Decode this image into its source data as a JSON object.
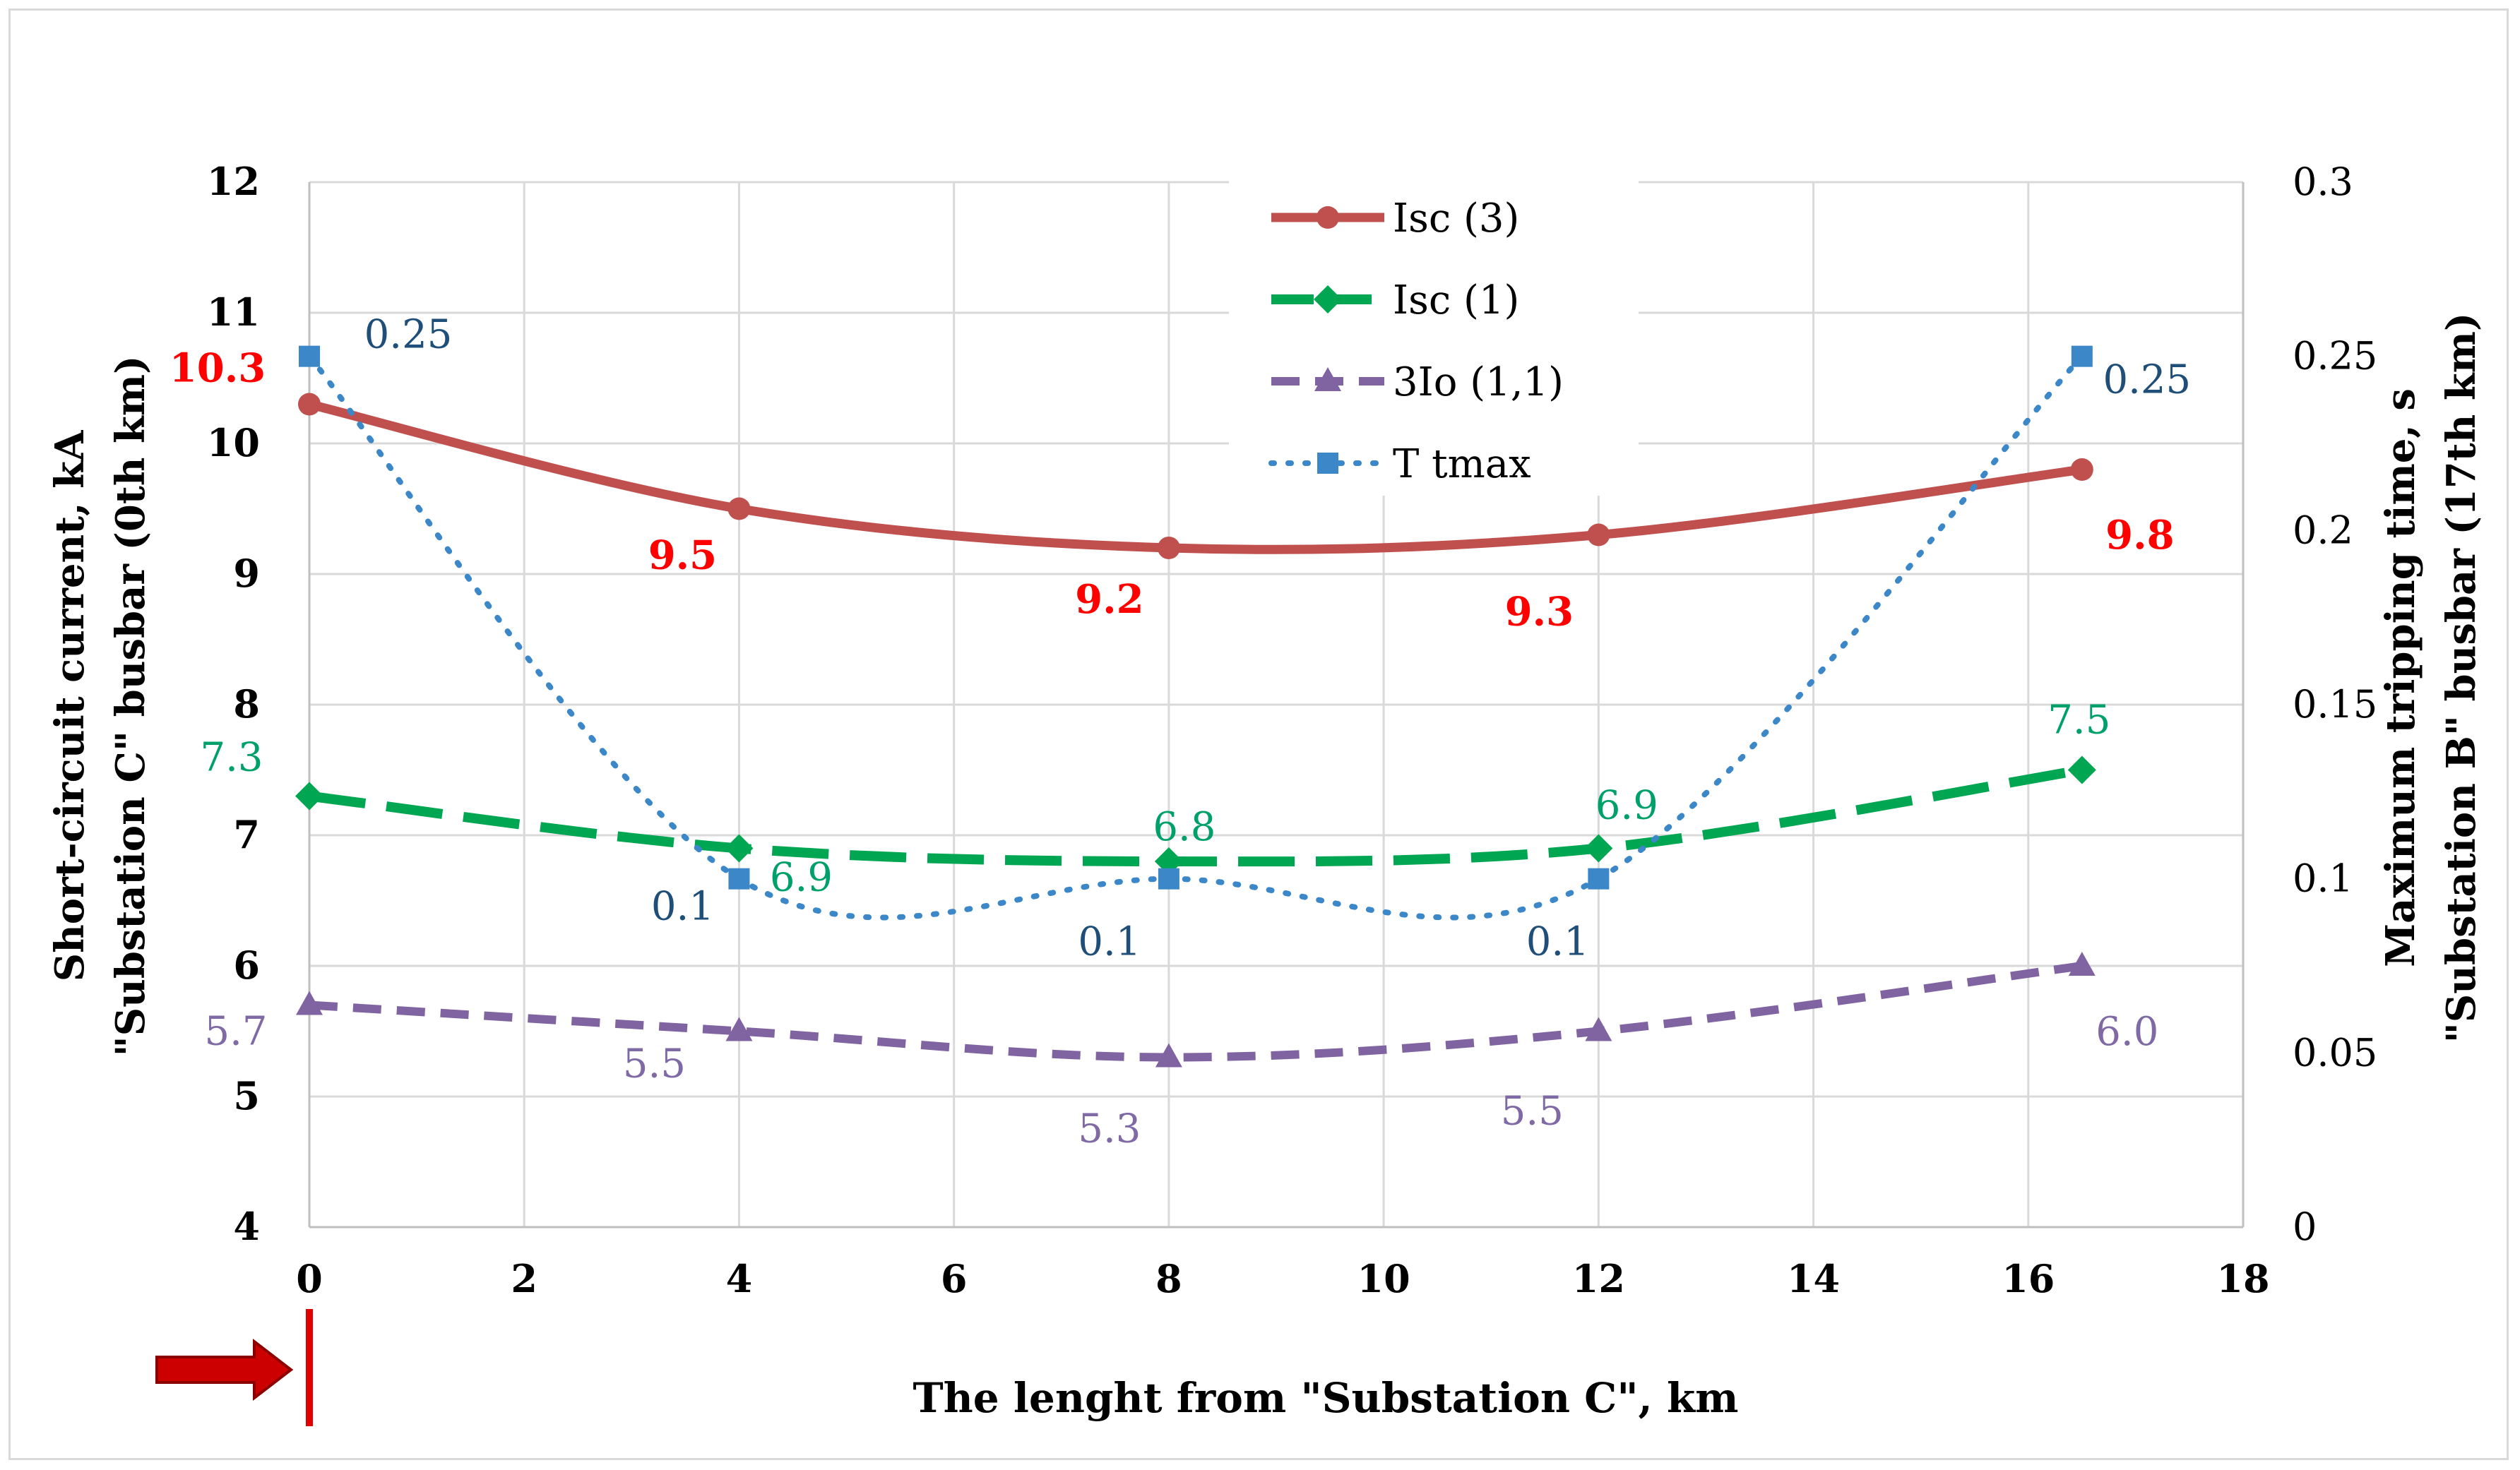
{
  "chart_data": {
    "type": "line",
    "xlabel": "The lenght from \"Substation C\", km",
    "ylabel_left": [
      "Short-circuit current, kA",
      "\"Substation C\" busbar (0th km)"
    ],
    "ylabel_right": [
      "Maximum tripping time, s",
      "\"Substation B\" busbar (17th km)"
    ],
    "x_ticks": [
      "0",
      "2",
      "4",
      "6",
      "8",
      "10",
      "12",
      "14",
      "16",
      "18"
    ],
    "y_left_ticks": [
      "4",
      "5",
      "6",
      "7",
      "8",
      "9",
      "10",
      "11",
      "12"
    ],
    "y_right_ticks": [
      "0",
      "0.05",
      "0.1",
      "0.15",
      "0.2",
      "0.25",
      "0.3"
    ],
    "xlim": [
      0,
      18
    ],
    "ylim_left": [
      4,
      12
    ],
    "ylim_right": [
      0,
      0.3
    ],
    "series": [
      {
        "name": "Isc (3)",
        "axis": "left",
        "color": "#c0504d",
        "marker": "circle",
        "style": "solid",
        "x": [
          0,
          4,
          8,
          12,
          16.5
        ],
        "values": [
          10.3,
          9.5,
          9.2,
          9.3,
          9.8
        ],
        "labels": [
          "10.3",
          "9.5",
          "9.2",
          "9.3",
          "9.8"
        ],
        "label_color": "#ff0000"
      },
      {
        "name": "Isc (1)",
        "axis": "left",
        "color": "#00a651",
        "marker": "diamond",
        "style": "longdash",
        "x": [
          0,
          4,
          8,
          12,
          16.5
        ],
        "values": [
          7.3,
          6.9,
          6.8,
          6.9,
          7.5
        ],
        "labels": [
          "7.3",
          "6.9",
          "6.8",
          "6.9",
          "7.5"
        ],
        "label_color": "#00a06a"
      },
      {
        "name": "3Io (1,1)",
        "axis": "left",
        "color": "#8064a2",
        "marker": "triangle",
        "style": "dash",
        "x": [
          0,
          4,
          8,
          12,
          16.5
        ],
        "values": [
          5.7,
          5.5,
          5.3,
          5.5,
          6.0
        ],
        "labels": [
          "5.7",
          "5.5",
          "5.3",
          "5.5",
          "6.0"
        ],
        "label_color": "#7f6aa5"
      },
      {
        "name": "T tmax",
        "axis": "right",
        "color": "#3b87c8",
        "marker": "square",
        "style": "dot",
        "x": [
          0,
          4,
          8,
          12,
          16.5
        ],
        "values": [
          0.25,
          0.1,
          0.1,
          0.1,
          0.25
        ],
        "labels": [
          "0.25",
          "0.1",
          "0.1",
          "0.1",
          "0.25"
        ],
        "label_color": "#1f4e79"
      }
    ],
    "grid": true,
    "legend_position": "top-center",
    "annotation": "red arrow pointing to the 0 km mark"
  }
}
